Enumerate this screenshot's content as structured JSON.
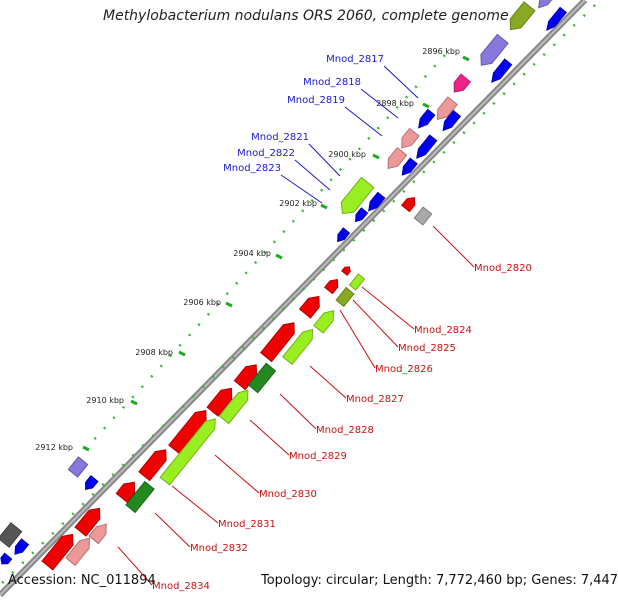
{
  "map_title": "Methylobacterium nodulans ORS 2060, complete genome",
  "accession_label": "Accession: NC_011894",
  "summary_label": "Topology: circular; Length: 7,772,460 bp; Genes: 7,447",
  "ticks": [
    "2896 kbp",
    "2898 kbp",
    "2900 kbp",
    "2902 kbp",
    "2904 kbp",
    "2906 kbp",
    "2908 kbp",
    "2910 kbp",
    "2912 kbp"
  ],
  "genes_forward": [
    "Mnod_2817",
    "Mnod_2818",
    "Mnod_2819",
    "Mnod_2821",
    "Mnod_2822",
    "Mnod_2823"
  ],
  "genes_reverse": [
    "Mnod_2820",
    "Mnod_2824",
    "Mnod_2825",
    "Mnod_2826",
    "Mnod_2827",
    "Mnod_2828",
    "Mnod_2829",
    "Mnod_2830",
    "Mnod_2831",
    "Mnod_2832",
    "Mnod_2834"
  ],
  "colors": {
    "forward_label": "#1a1acc",
    "reverse_label": "#cc1111",
    "forward_cds": "#0000ee",
    "reverse_cds": "#ee0000",
    "lime": "#99ee22",
    "dark_green": "#228822",
    "olive": "#88aa22",
    "pink": "#ee9999",
    "magenta": "#ee2288",
    "lavender": "#8877dd",
    "grey": "#aaaaaa",
    "dark_grey": "#555555",
    "backbone": "#888888",
    "tick": "#22aa22"
  }
}
